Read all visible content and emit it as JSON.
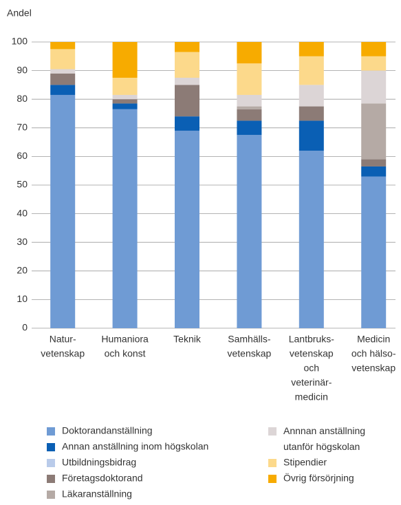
{
  "chart_data": {
    "type": "stacked-bar",
    "y_label": "Andel",
    "categories": [
      [
        "Natur-",
        "vetenskap"
      ],
      [
        "Humaniora",
        "och konst"
      ],
      [
        "Teknik"
      ],
      [
        "Samhälls-",
        "vetenskap"
      ],
      [
        "Lantbruks-",
        "vetenskap",
        "och",
        "veterinär-",
        "medicin"
      ],
      [
        "Medicin",
        "och hälso-",
        "vetenskap"
      ]
    ],
    "series": [
      {
        "name": "Doktorandanställning",
        "color": "#6f9bd4",
        "values": [
          81.5,
          76.5,
          69,
          67.5,
          62,
          53
        ]
      },
      {
        "name": "Annan anställning inom högskolan",
        "color": "#0a5fb4",
        "values": [
          3.5,
          2,
          5,
          5,
          10.5,
          3.5
        ]
      },
      {
        "name": "Utbildningsbidrag",
        "color": "#b9cbea",
        "values": [
          0,
          0,
          0,
          0,
          0,
          0
        ]
      },
      {
        "name": "Företagsdoktorand",
        "color": "#8c7b76",
        "values": [
          4,
          1.5,
          11,
          4,
          5,
          2.5
        ]
      },
      {
        "name": "Läkaranställning",
        "color": "#b5aaa5",
        "values": [
          0,
          0,
          0,
          1,
          0,
          19.5
        ]
      },
      {
        "name": "Annnan anställning utanför högskolan",
        "color": "#dcd5d6",
        "values": [
          1.5,
          1.5,
          2.5,
          4,
          7.5,
          11.5
        ]
      },
      {
        "name": "Stipendier",
        "color": "#fcd98b",
        "values": [
          7,
          6,
          9,
          11,
          10,
          5
        ]
      },
      {
        "name": "Övrig försörjning",
        "color": "#f7ab00",
        "values": [
          2.5,
          12.5,
          3.5,
          7.5,
          5,
          5
        ]
      }
    ],
    "ylim": [
      0,
      100
    ],
    "yticks": [
      0,
      10,
      20,
      30,
      40,
      50,
      60,
      70,
      80,
      90,
      100
    ],
    "grid": true
  }
}
